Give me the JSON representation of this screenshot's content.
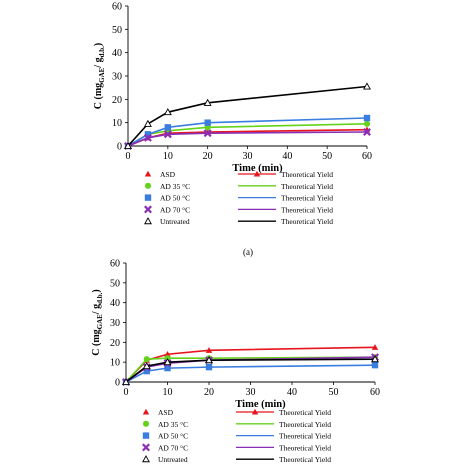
{
  "panel_label_a": "(a)",
  "chart_data": [
    {
      "type": "line",
      "xlabel": "Time (min)",
      "ylabel_main": "C (mg",
      "ylabel_sub1": "GAE",
      "ylabel_mid": "/ g",
      "ylabel_sub2": "d.b.",
      "ylabel_end": ")",
      "xlim": [
        0,
        60
      ],
      "ylim": [
        0,
        60
      ],
      "xticks": [
        0,
        10,
        20,
        30,
        40,
        50,
        60
      ],
      "yticks": [
        0,
        10,
        20,
        30,
        40,
        50,
        60
      ],
      "grid": false,
      "legend": "bottom",
      "x": [
        0,
        5,
        10,
        20,
        60
      ],
      "series": [
        {
          "name": "ASD",
          "marker": "triangle",
          "color": "#e8141b",
          "values": [
            0,
            3.5,
            5.5,
            6.0,
            7.0
          ]
        },
        {
          "name": "AD 35 °C",
          "marker": "circle",
          "color": "#66d11b",
          "values": [
            0,
            5.0,
            6.5,
            8.0,
            9.5
          ]
        },
        {
          "name": "AD 50 °C",
          "marker": "square",
          "color": "#3a7de0",
          "values": [
            0,
            5.0,
            8.0,
            10.0,
            12.0
          ]
        },
        {
          "name": "AD 70 °C",
          "marker": "x",
          "color": "#8a2eb5",
          "values": [
            0,
            3.5,
            5.0,
            5.5,
            6.0
          ]
        },
        {
          "name": "Untreated",
          "marker": "open-triangle",
          "color": "#000000",
          "values": [
            0,
            9.5,
            14.5,
            18.5,
            25.5
          ]
        }
      ],
      "theoretical": [
        {
          "name": "Theoretical Yield",
          "color": "#e8141b",
          "values": [
            0,
            3.5,
            5.5,
            6.0,
            7.0
          ]
        },
        {
          "name": "Theoretical Yield",
          "color": "#66d11b",
          "values": [
            0,
            5.0,
            6.5,
            8.0,
            9.5
          ]
        },
        {
          "name": "Theoretical Yield",
          "color": "#3a7de0",
          "values": [
            0,
            5.0,
            8.0,
            10.0,
            12.0
          ]
        },
        {
          "name": "Theoretical Yield",
          "color": "#8a2eb5",
          "values": [
            0,
            3.5,
            5.0,
            5.5,
            6.0
          ]
        },
        {
          "name": "Theoretical Yield",
          "color": "#000000",
          "values": [
            0,
            9.5,
            14.5,
            18.5,
            25.5
          ]
        }
      ]
    },
    {
      "type": "line",
      "xlabel": "Time (min)",
      "ylabel_main": "C (mg",
      "ylabel_sub1": "GAE",
      "ylabel_mid": "/ g",
      "ylabel_sub2": "d.b.",
      "ylabel_end": ")",
      "xlim": [
        0,
        60
      ],
      "ylim": [
        0,
        60
      ],
      "xticks": [
        0,
        10,
        20,
        30,
        40,
        50,
        60
      ],
      "yticks": [
        0,
        10,
        20,
        30,
        40,
        50,
        60
      ],
      "grid": false,
      "legend": "bottom",
      "x": [
        0,
        5,
        10,
        20,
        60
      ],
      "series": [
        {
          "name": "ASD",
          "marker": "triangle",
          "color": "#e8141b",
          "values": [
            0,
            11.0,
            14.0,
            16.0,
            17.5
          ]
        },
        {
          "name": "AD 35 °C",
          "marker": "circle",
          "color": "#66d11b",
          "values": [
            0,
            11.5,
            12.0,
            12.0,
            12.5
          ]
        },
        {
          "name": "AD 50 °C",
          "marker": "square",
          "color": "#3a7de0",
          "values": [
            0,
            5.5,
            7.0,
            7.5,
            8.5
          ]
        },
        {
          "name": "AD 70 °C",
          "marker": "x",
          "color": "#8a2eb5",
          "values": [
            0,
            7.5,
            9.5,
            11.0,
            12.5
          ]
        },
        {
          "name": "Untreated",
          "marker": "open-triangle",
          "color": "#000000",
          "values": [
            0,
            8.0,
            10.0,
            11.0,
            11.5
          ]
        }
      ],
      "theoretical": [
        {
          "name": "Theoretical Yield",
          "color": "#e8141b",
          "values": [
            0,
            11.0,
            14.0,
            16.0,
            17.5
          ]
        },
        {
          "name": "Theoretical Yield",
          "color": "#66d11b",
          "values": [
            0,
            11.5,
            12.0,
            12.0,
            12.5
          ]
        },
        {
          "name": "Theoretical Yield",
          "color": "#3a7de0",
          "values": [
            0,
            5.5,
            7.0,
            7.5,
            8.5
          ]
        },
        {
          "name": "Theoretical Yield",
          "color": "#8a2eb5",
          "values": [
            0,
            7.5,
            9.5,
            11.0,
            12.5
          ]
        },
        {
          "name": "Theoretical Yield",
          "color": "#000000",
          "values": [
            0,
            8.0,
            10.0,
            11.0,
            11.5
          ]
        }
      ]
    }
  ]
}
